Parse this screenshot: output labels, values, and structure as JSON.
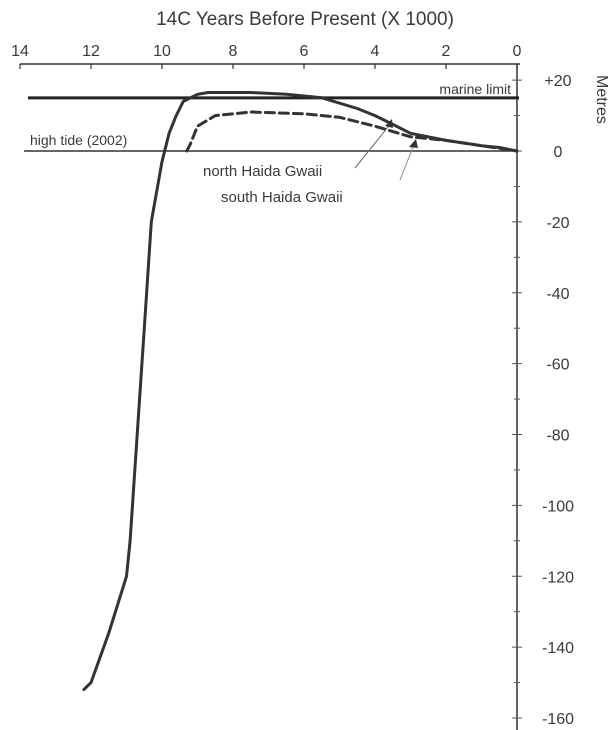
{
  "chart_data": {
    "type": "line",
    "title": "14C Years Before Present (X 1000)",
    "xlabel": "14C Years Before Present (X 1000)",
    "ylabel": "Metres",
    "x_axis_position": "top",
    "y_axis_position": "right",
    "x_reversed": true,
    "xlim": [
      0,
      14
    ],
    "ylim": [
      -160,
      20
    ],
    "x_ticks": [
      14,
      12,
      10,
      8,
      6,
      4,
      2,
      0
    ],
    "y_ticks": [
      20,
      0,
      -20,
      -40,
      -60,
      -80,
      -100,
      -120,
      -140,
      -160
    ],
    "y_tick_labels": [
      "+20",
      "0",
      "-20",
      "-40",
      "-60",
      "-80",
      "-100",
      "-120",
      "-140",
      "-160"
    ],
    "grid": false,
    "reference_lines": [
      {
        "label": "marine limit",
        "y": 15
      },
      {
        "label": "high tide (2002)",
        "y": 0
      }
    ],
    "series": [
      {
        "name": "north Haida Gwaii",
        "style": "solid",
        "color": "#333333",
        "x": [
          12.2,
          12.0,
          11.5,
          11.0,
          10.9,
          10.7,
          10.5,
          10.3,
          10.0,
          9.8,
          9.6,
          9.5,
          9.45,
          9.4,
          9.2,
          9.0,
          8.7,
          8.3,
          7.5,
          6.5,
          5.5,
          4.5,
          4.0,
          3.5,
          3.0,
          2.0,
          1.0,
          0.5,
          0.0
        ],
        "y": [
          -152,
          -150,
          -136,
          -120,
          -110,
          -80,
          -50,
          -20,
          -3,
          5,
          10,
          12,
          13,
          14,
          15,
          16,
          16.5,
          16.5,
          16.5,
          16,
          15,
          12,
          10,
          7.5,
          5,
          3,
          1.5,
          1,
          0
        ]
      },
      {
        "name": "south Haida Gwaii",
        "style": "dashed",
        "color": "#333333",
        "x": [
          9.3,
          9.2,
          9.0,
          8.5,
          7.5,
          6.0,
          5.0,
          4.0,
          3.0,
          2.0,
          1.0,
          0.0
        ],
        "y": [
          0,
          2,
          7,
          10,
          11,
          10.5,
          9.5,
          7,
          4,
          3,
          1.5,
          0
        ]
      }
    ],
    "annotations": [
      {
        "text": "north Haida Gwaii"
      },
      {
        "text": "south Haida Gwaii"
      }
    ]
  }
}
